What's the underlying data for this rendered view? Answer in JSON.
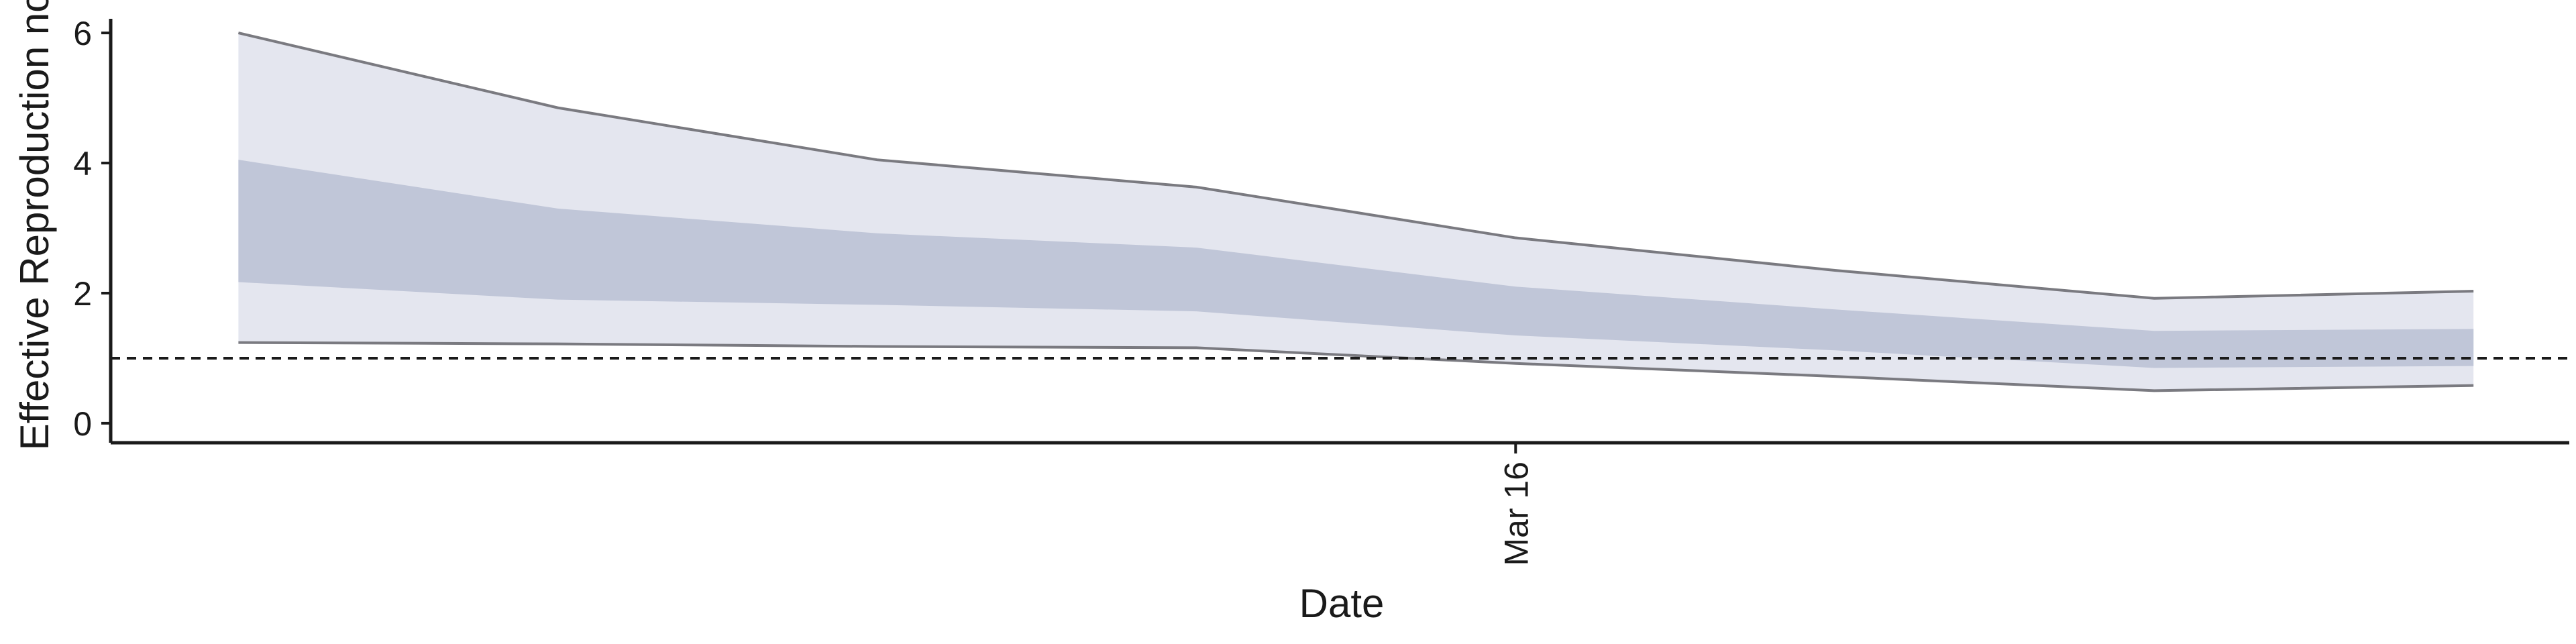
{
  "chart_data": {
    "type": "area",
    "xlabel": "Date",
    "ylabel": "Effective Reproduction no.",
    "x_ticks": [
      {
        "label": "Mar 16",
        "x": 11.0
      }
    ],
    "xlim": [
      6.6,
      14.3
    ],
    "ylim": [
      -0.3,
      6.3
    ],
    "y_ticks": [
      0,
      2,
      4,
      6
    ],
    "reference_line": {
      "y": 1,
      "style": "dashed"
    },
    "x": [
      7,
      8,
      9,
      10,
      11,
      12,
      13,
      14
    ],
    "series": [
      {
        "band": "outer",
        "upper": [
          6.0,
          4.85,
          4.05,
          3.63,
          2.85,
          2.35,
          1.92,
          2.03
        ],
        "lower": [
          1.24,
          1.22,
          1.18,
          1.16,
          0.92,
          0.72,
          0.5,
          0.58
        ]
      },
      {
        "band": "inner",
        "upper": [
          4.05,
          3.3,
          2.92,
          2.7,
          2.1,
          1.75,
          1.42,
          1.45
        ],
        "lower": [
          2.17,
          1.9,
          1.82,
          1.72,
          1.35,
          1.12,
          0.85,
          0.88
        ]
      }
    ],
    "colors": {
      "outer_fill": "#e4e6ef",
      "inner_fill": "#c0c6d8",
      "edge_line": "#7a7a80",
      "axis": "#1a1a1a"
    },
    "grid": false,
    "legend": "none"
  }
}
